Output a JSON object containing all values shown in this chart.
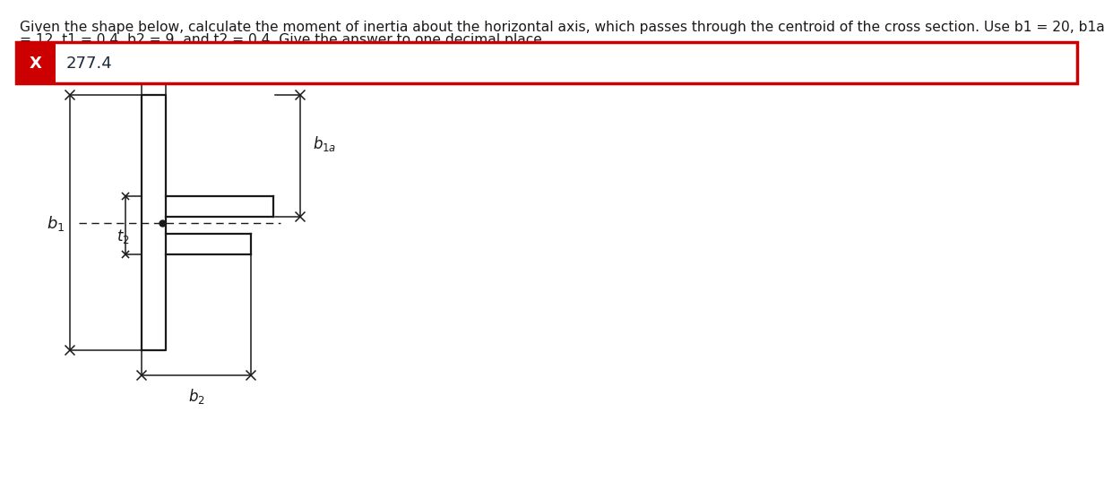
{
  "title_line1": "Given the shape below, calculate the moment of inertia about the horizontal axis, which passes through the centroid of the cross section. Use b1 = 20, b1a",
  "title_line2": "= 12, t1 = 0.4, b2 = 9, and t2 = 0.4. Give the answer to one decimal place.",
  "answer": "277.4",
  "answer_box_bg": "#cc0000",
  "answer_text_color": "#1a2a3a",
  "background_color": "#ffffff",
  "fig_width": 12.0,
  "fig_height": 5.18,
  "lw_shape": 1.6,
  "lw_dim": 1.1
}
